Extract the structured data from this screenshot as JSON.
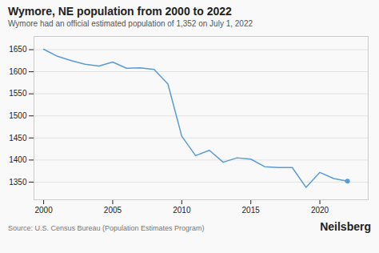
{
  "chart_data": {
    "type": "line",
    "title": "Wymore, NE population from 2000 to 2022",
    "subtitle": "Wymore had an official estimated population of 1,352 on July 1, 2022",
    "source": "Source: U.S. Census Bureau (Population Estimates Program)",
    "brand": "Neilsberg",
    "x": [
      2000,
      2001,
      2002,
      2003,
      2004,
      2005,
      2006,
      2007,
      2008,
      2009,
      2010,
      2011,
      2012,
      2013,
      2014,
      2015,
      2016,
      2017,
      2018,
      2019,
      2020,
      2021,
      2022
    ],
    "values": [
      1651,
      1635,
      1625,
      1617,
      1613,
      1622,
      1608,
      1609,
      1605,
      1572,
      1454,
      1410,
      1422,
      1395,
      1405,
      1402,
      1385,
      1383,
      1383,
      1338,
      1372,
      1358,
      1352
    ],
    "color": "#5b9bd5",
    "xlim": [
      1999.3,
      2023.5
    ],
    "xticks": [
      2000,
      2005,
      2010,
      2015,
      2020
    ],
    "ylim": [
      1310,
      1680
    ],
    "yticks": [
      1350,
      1400,
      1450,
      1500,
      1550,
      1600,
      1650
    ],
    "grid": "y"
  }
}
